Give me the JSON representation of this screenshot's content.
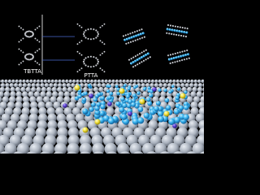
{
  "labels": {
    "left": "TBTTA",
    "right": "PTTA"
  }
}
